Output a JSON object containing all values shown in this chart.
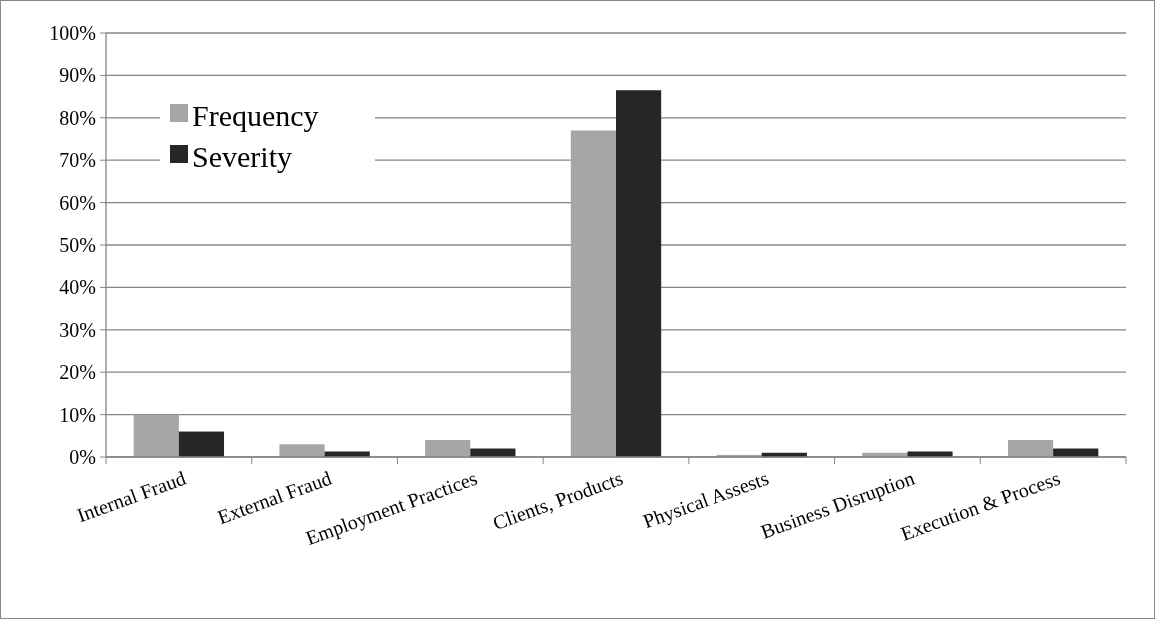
{
  "chart_data": {
    "type": "bar",
    "categories": [
      "Internal Fraud",
      "External Fraud",
      "Employment Practices",
      "Clients, Products",
      "Physical Assests",
      "Business Disruption",
      "Execution & Process"
    ],
    "series": [
      {
        "name": "Frequency",
        "color": "#a6a6a6",
        "values": [
          10,
          3,
          4,
          77,
          0.5,
          1,
          4
        ]
      },
      {
        "name": "Severity",
        "color": "#262626",
        "values": [
          6,
          1.3,
          2,
          86.5,
          1,
          1.3,
          2
        ]
      }
    ],
    "ylim": [
      0,
      100
    ],
    "yticks": [
      {
        "value": 0,
        "label": "0%"
      },
      {
        "value": 10,
        "label": "10%"
      },
      {
        "value": 20,
        "label": "20%"
      },
      {
        "value": 30,
        "label": "30%"
      },
      {
        "value": 40,
        "label": "40%"
      },
      {
        "value": 50,
        "label": "50%"
      },
      {
        "value": 60,
        "label": "60%"
      },
      {
        "value": 70,
        "label": "70%"
      },
      {
        "value": 80,
        "label": "80%"
      },
      {
        "value": 90,
        "label": "90%"
      },
      {
        "value": 100,
        "label": "100%"
      }
    ],
    "grid": "y",
    "legend": "top left"
  }
}
